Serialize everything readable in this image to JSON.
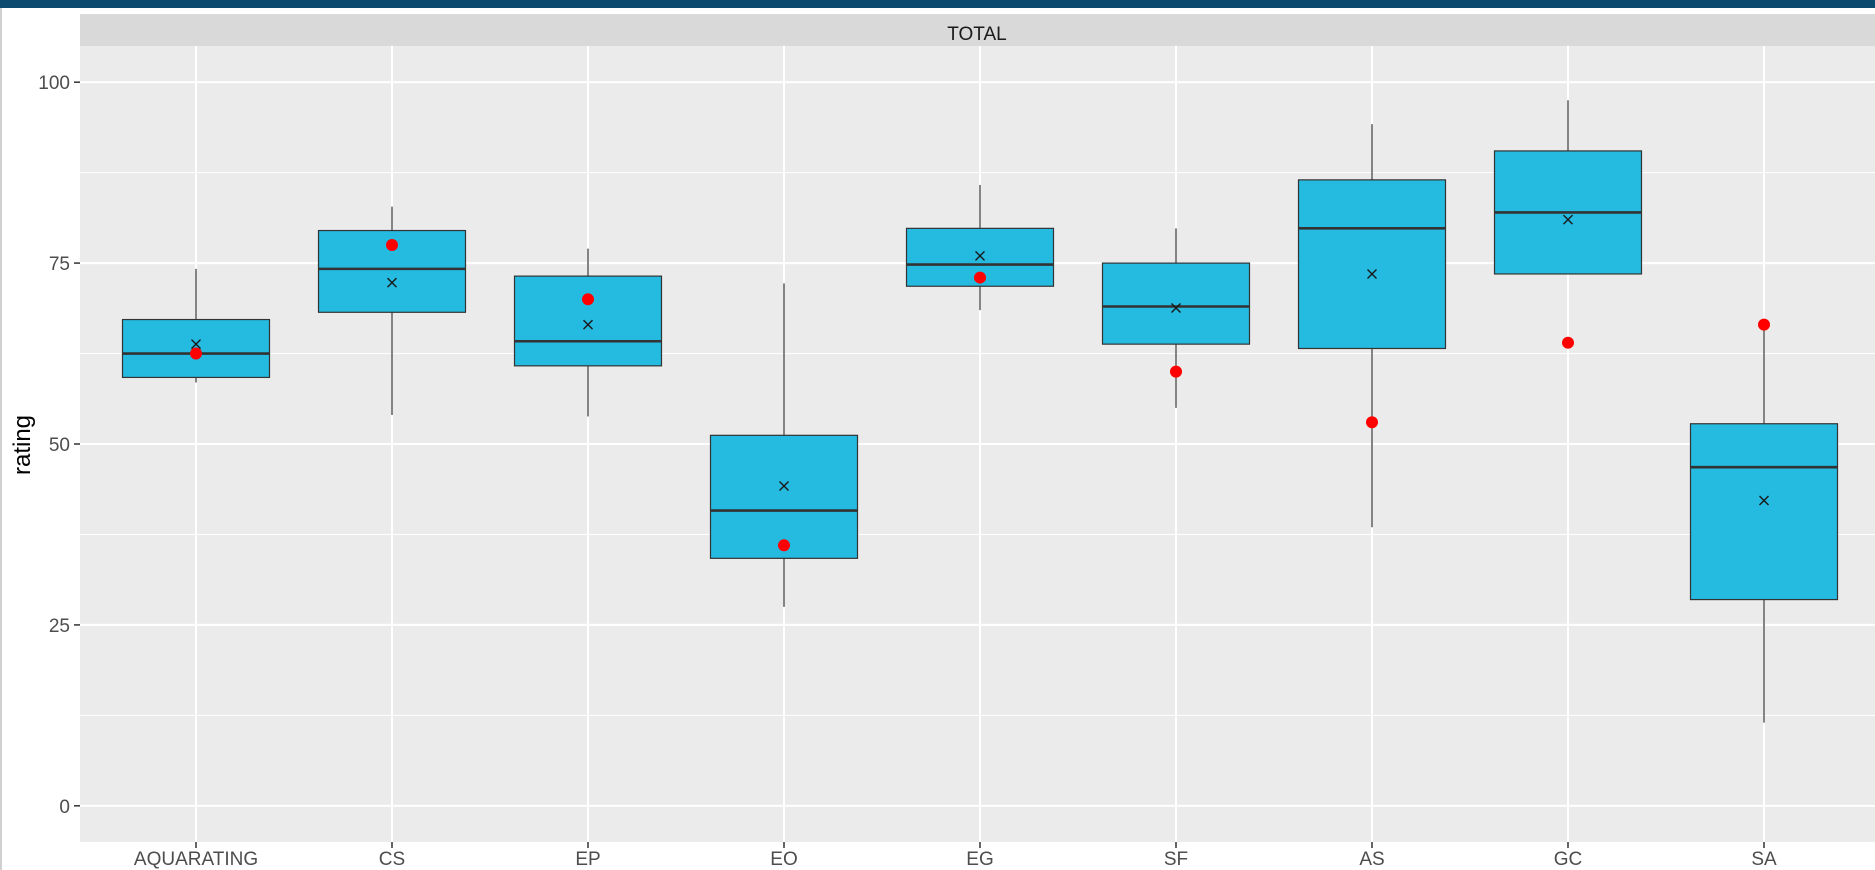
{
  "chart_data": {
    "type": "box",
    "panel_title": "TOTAL",
    "xlabel": "",
    "ylabel": "rating",
    "ylim": [
      -5,
      105
    ],
    "y_ticks": [
      0,
      25,
      50,
      75,
      100
    ],
    "categories": [
      "AQUARATING",
      "CS",
      "EP",
      "EO",
      "EG",
      "SF",
      "AS",
      "GC",
      "SA"
    ],
    "boxes": [
      {
        "category": "AQUARATING",
        "whisker_low": 58.5,
        "q1": 59.2,
        "median": 62.5,
        "q3": 67.2,
        "whisker_high": 74.2,
        "mean": 63.8,
        "point": 62.5
      },
      {
        "category": "CS",
        "whisker_low": 54.0,
        "q1": 68.2,
        "median": 74.2,
        "q3": 79.5,
        "whisker_high": 82.8,
        "mean": 72.3,
        "point": 77.5
      },
      {
        "category": "EP",
        "whisker_low": 53.8,
        "q1": 60.8,
        "median": 64.2,
        "q3": 73.2,
        "whisker_high": 77.0,
        "mean": 66.5,
        "point": 70.0
      },
      {
        "category": "EO",
        "whisker_low": 27.5,
        "q1": 34.2,
        "median": 40.8,
        "q3": 51.2,
        "whisker_high": 72.2,
        "mean": 44.2,
        "point": 36.0
      },
      {
        "category": "EG",
        "whisker_low": 68.5,
        "q1": 71.8,
        "median": 74.8,
        "q3": 79.8,
        "whisker_high": 85.8,
        "mean": 76.0,
        "point": 73.0
      },
      {
        "category": "SF",
        "whisker_low": 55.0,
        "q1": 63.8,
        "median": 69.0,
        "q3": 75.0,
        "whisker_high": 79.8,
        "mean": 68.8,
        "point": 60.0
      },
      {
        "category": "AS",
        "whisker_low": 38.5,
        "q1": 63.2,
        "median": 79.8,
        "q3": 86.5,
        "whisker_high": 94.2,
        "mean": 73.5,
        "point": 53.0
      },
      {
        "category": "GC",
        "whisker_low": 73.5,
        "q1": 73.5,
        "median": 82.0,
        "q3": 90.5,
        "whisker_high": 97.5,
        "mean": 81.0,
        "point": 64.0
      },
      {
        "category": "SA",
        "whisker_low": 11.5,
        "q1": 28.5,
        "median": 46.8,
        "q3": 52.8,
        "whisker_high": 66.5,
        "mean": 42.2,
        "point": 66.5
      }
    ],
    "grid": true,
    "legend": "none",
    "colors": {
      "box_fill": "#25bae0",
      "box_line": "#333333",
      "point": "#ff0000",
      "mean_marker": "#1a1a1a",
      "panel_bg": "#ebebeb",
      "strip_bg": "#d9d9d9",
      "grid": "#ffffff"
    }
  }
}
